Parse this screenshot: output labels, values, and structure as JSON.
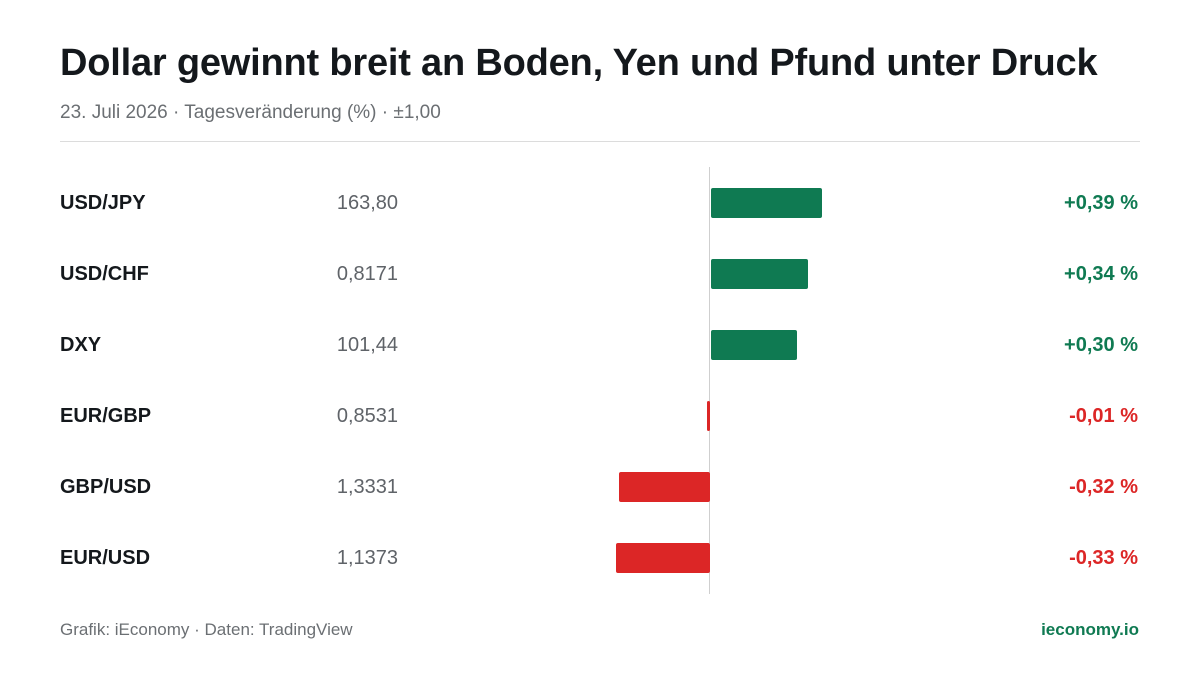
{
  "header": {
    "title": "Dollar gewinnt breit an Boden, Yen und Pfund unter Druck",
    "subtitle": "23. Juli 2026 · Tagesveränderung (%) · ±1,00"
  },
  "footer": {
    "source": "Grafik: iEconomy · Daten: TradingView",
    "brand": "ieconomy.io"
  },
  "colors": {
    "positive": "#0f7a52",
    "negative": "#dc2626"
  },
  "chart_data": {
    "type": "bar",
    "orientation": "horizontal",
    "title": "Dollar gewinnt breit an Boden, Yen und Pfund unter Druck",
    "subtitle": "23. Juli 2026 · Tagesveränderung (%) · ±1,00",
    "xlim": [
      -1.0,
      1.0
    ],
    "grid": false,
    "categories": [
      "USD/JPY",
      "USD/CHF",
      "DXY",
      "EUR/GBP",
      "GBP/USD",
      "EUR/USD"
    ],
    "rates": [
      "163,80",
      "0,8171",
      "101,44",
      "0,8531",
      "1,3331",
      "1,1373"
    ],
    "values": [
      0.39,
      0.34,
      0.3,
      -0.01,
      -0.32,
      -0.33
    ],
    "labels": [
      "+0,39 %",
      "+0,34 %",
      "+0,30 %",
      "-0,01 %",
      "-0,32 %",
      "-0,33 %"
    ]
  }
}
